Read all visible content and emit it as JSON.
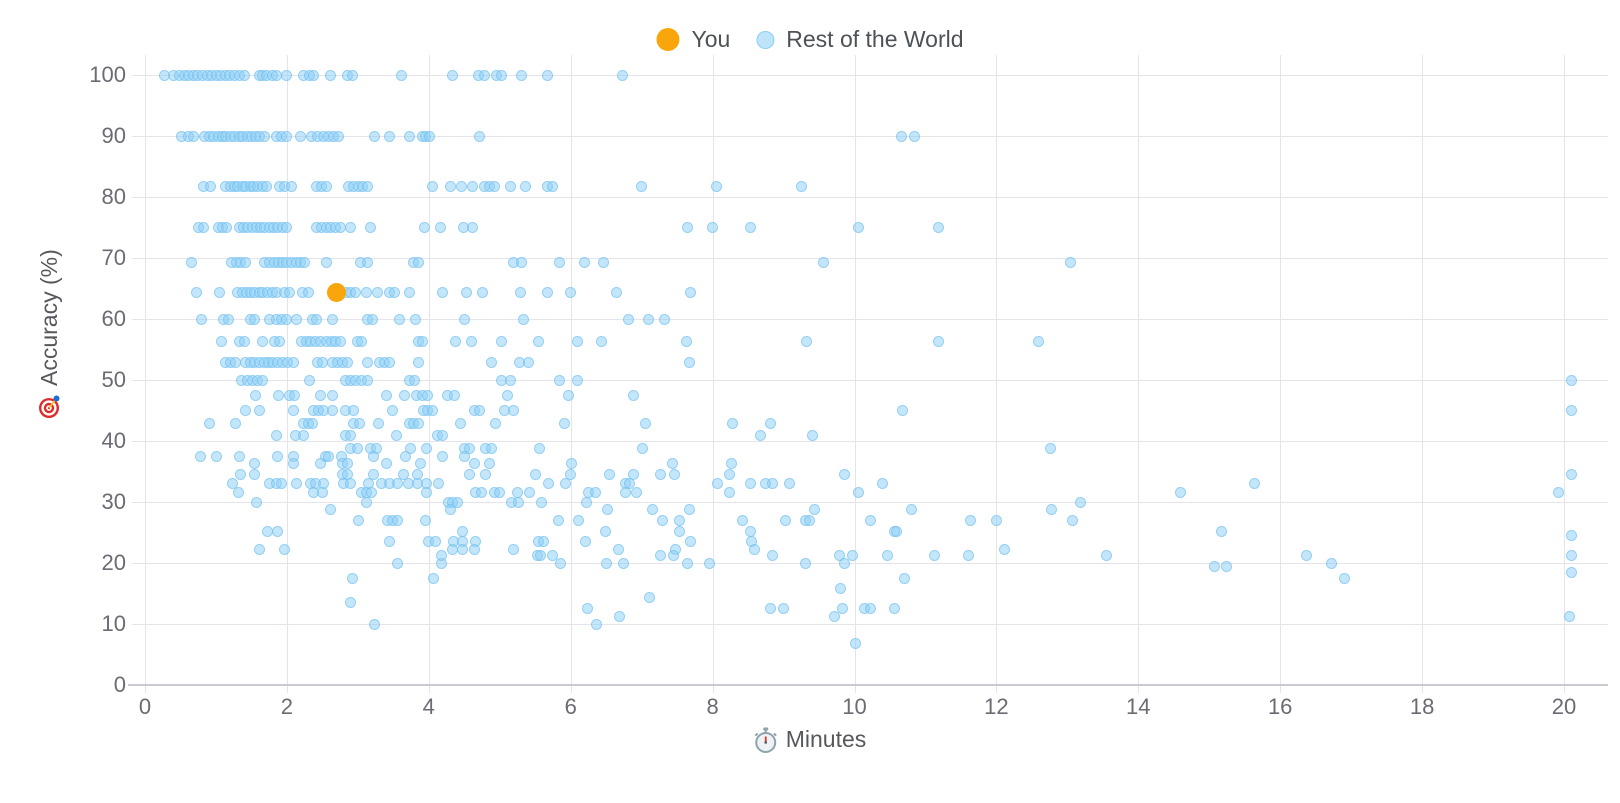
{
  "legend": {
    "you_label": "You",
    "rest_label": "Rest of the World"
  },
  "axes": {
    "y_label": "Accuracy (%)",
    "x_label": "Minutes"
  },
  "colors": {
    "you": "#f9a60c",
    "rest_fill": "#a9ddf8",
    "rest_edge": "#7cc6ef",
    "grid": "#e4e4ea",
    "axis": "#c9c9d2",
    "tick_text": "#6b6b73",
    "label_text": "#55585c",
    "target_red": "#e02b2b",
    "dart_blue": "#1d6fd1"
  },
  "chart_data": {
    "type": "scatter",
    "title": "",
    "xlabel": "Minutes",
    "ylabel": "Accuracy (%)",
    "xlim": [
      0,
      20.4
    ],
    "ylim": [
      0,
      100
    ],
    "x_ticks": [
      0,
      2,
      4,
      6,
      8,
      10,
      12,
      14,
      16,
      18,
      20
    ],
    "y_ticks": [
      0,
      10,
      20,
      30,
      40,
      50,
      60,
      70,
      80,
      90,
      100
    ],
    "grid": true,
    "legend_position": "top-center",
    "series": [
      {
        "name": "You",
        "color": "#f9a60c",
        "points": [
          [
            2.7,
            64.3
          ]
        ]
      },
      {
        "name": "Rest of the World",
        "color": "#a9ddf8",
        "points_by_accuracy": {
          "100": [
            0.28,
            0.4,
            0.48,
            0.55,
            0.62,
            0.68,
            0.74,
            0.81,
            0.88,
            0.94,
            1.01,
            1.07,
            1.13,
            1.19,
            1.26,
            1.33,
            1.4,
            1.61,
            1.66,
            1.71,
            1.79,
            1.85,
            1.99,
            2.23,
            2.32,
            2.38,
            2.62,
            2.85,
            2.92,
            3.62,
            4.33,
            4.7,
            4.78,
            4.96,
            5.03,
            5.3,
            5.68,
            6.73
          ],
          "90": [
            0.52,
            0.61,
            0.68,
            0.84,
            0.91,
            0.96,
            1.03,
            1.09,
            1.14,
            1.21,
            1.26,
            1.33,
            1.38,
            1.44,
            1.5,
            1.56,
            1.62,
            1.68,
            1.86,
            1.93,
            1.99,
            2.19,
            2.35,
            2.43,
            2.51,
            2.58,
            2.65,
            2.73,
            3.23,
            3.44,
            3.73,
            3.91,
            3.95,
            4.01,
            4.71,
            10.66,
            10.84
          ],
          "81.8": [
            0.83,
            0.92,
            1.13,
            1.2,
            1.26,
            1.31,
            1.37,
            1.42,
            1.48,
            1.53,
            1.59,
            1.65,
            1.71,
            1.9,
            1.97,
            2.07,
            2.42,
            2.49,
            2.56,
            2.87,
            2.94,
            3.01,
            3.07,
            3.13,
            4.05,
            4.3,
            4.46,
            4.62,
            4.78,
            4.85,
            4.92,
            5.15,
            5.36,
            5.68,
            5.74,
            7.0,
            8.06,
            9.25
          ],
          "75": [
            0.76,
            0.83,
            1.03,
            1.09,
            1.15,
            1.33,
            1.39,
            1.45,
            1.51,
            1.57,
            1.63,
            1.69,
            1.75,
            1.81,
            1.87,
            1.94,
            2.0,
            2.42,
            2.49,
            2.56,
            2.62,
            2.68,
            2.76,
            2.89,
            3.18,
            3.94,
            4.16,
            4.49,
            4.62,
            7.64,
            8.0,
            8.53,
            10.06,
            11.19
          ],
          "69.2": [
            0.65,
            1.22,
            1.29,
            1.35,
            1.41,
            1.69,
            1.76,
            1.82,
            1.88,
            1.94,
            2.0,
            2.07,
            2.13,
            2.19,
            2.25,
            2.56,
            3.04,
            3.13,
            3.78,
            3.86,
            5.2,
            5.31,
            5.84,
            6.2,
            6.46,
            9.57,
            13.05
          ],
          "64.3": [
            0.72,
            1.05,
            1.31,
            1.37,
            1.43,
            1.48,
            1.54,
            1.61,
            1.66,
            1.73,
            1.79,
            1.85,
            1.97,
            2.03,
            2.22,
            2.3,
            2.84,
            2.9,
            2.97,
            3.12,
            3.27,
            3.44,
            3.51,
            3.73,
            4.2,
            4.53,
            4.75,
            5.29,
            5.67,
            6.0,
            6.65,
            7.69
          ],
          "60": [
            0.79,
            1.1,
            1.18,
            1.48,
            1.55,
            1.76,
            1.85,
            1.93,
            2.0,
            2.14,
            2.36,
            2.42,
            2.64,
            3.14,
            3.21,
            3.59,
            3.81,
            4.5,
            5.34,
            6.81,
            7.1,
            7.32
          ],
          "56.3": [
            1.08,
            1.33,
            1.4,
            1.66,
            1.83,
            1.9,
            2.2,
            2.27,
            2.33,
            2.4,
            2.47,
            2.56,
            2.63,
            2.69,
            2.76,
            2.99,
            3.05,
            3.85,
            3.91,
            4.37,
            4.6,
            5.03,
            5.55,
            6.09,
            6.43,
            7.63,
            9.32,
            11.18,
            12.6
          ],
          "52.9": [
            1.14,
            1.2,
            1.27,
            1.41,
            1.48,
            1.55,
            1.61,
            1.68,
            1.74,
            1.8,
            1.87,
            1.94,
            2.01,
            2.09,
            2.43,
            2.5,
            2.64,
            2.71,
            2.78,
            2.85,
            3.14,
            3.3,
            3.37,
            3.45,
            3.86,
            4.88,
            5.28,
            5.4,
            7.67
          ],
          "50": [
            1.36,
            1.44,
            1.52,
            1.58,
            1.66,
            2.32,
            2.83,
            2.9,
            2.97,
            3.05,
            3.13,
            3.73,
            3.8,
            5.03,
            5.15,
            5.84,
            6.1,
            20.1
          ],
          "47.4": [
            1.56,
            1.88,
            2.04,
            2.11,
            2.47,
            2.64,
            3.4,
            3.66,
            3.82,
            3.91,
            3.98,
            4.27,
            4.36,
            5.11,
            5.97,
            6.89
          ],
          "45": [
            1.42,
            1.61,
            2.09,
            2.38,
            2.44,
            2.51,
            2.64,
            2.82,
            2.94,
            3.49,
            3.92,
            3.98,
            4.05,
            4.65,
            4.72,
            5.07,
            5.2,
            10.67,
            20.1
          ],
          "42.9": [
            0.91,
            1.27,
            2.24,
            2.3,
            2.36,
            2.94,
            3.02,
            3.29,
            3.73,
            3.79,
            3.86,
            4.45,
            4.94,
            5.91,
            7.05,
            8.28,
            8.81
          ],
          "40.9": [
            1.85,
            2.12,
            2.24,
            2.82,
            2.9,
            3.55,
            4.12,
            4.2,
            8.68,
            9.41
          ],
          "38.8": [
            2.9,
            2.99,
            3.18,
            3.26,
            3.74,
            3.97,
            4.5,
            4.58,
            4.8,
            4.88,
            5.56,
            7.01,
            12.76
          ],
          "37.5": [
            0.78,
            1.01,
            1.33,
            1.87,
            2.1,
            2.54,
            2.59,
            2.77,
            3.22,
            3.67,
            4.2,
            4.51
          ],
          "36.3": [
            1.55,
            2.1,
            2.47,
            2.78,
            2.86,
            3.4,
            3.89,
            4.65,
            4.85,
            6.01,
            7.44,
            8.26
          ],
          "34.5": [
            1.35,
            1.54,
            2.78,
            2.85,
            3.22,
            3.64,
            3.84,
            4.58,
            4.8,
            5.51,
            6.0,
            6.54,
            6.89,
            7.27,
            7.47,
            8.24,
            9.86,
            20.1
          ],
          "33.1": [
            1.23,
            1.75,
            1.86,
            1.93,
            2.13,
            2.33,
            2.41,
            2.51,
            2.8,
            2.89,
            3.15,
            3.33,
            3.45,
            3.56,
            3.71,
            3.84,
            3.97,
            4.14,
            5.69,
            5.93,
            6.77,
            6.83,
            8.07,
            8.54,
            8.75,
            8.85,
            9.08,
            10.4,
            15.64
          ],
          "31.6": [
            1.32,
            2.38,
            2.5,
            3.05,
            3.12,
            3.19,
            3.97,
            4.66,
            4.74,
            4.92,
            4.99,
            5.25,
            5.42,
            6.25,
            6.35,
            6.77,
            6.93,
            8.24,
            10.06,
            14.6,
            19.92
          ],
          "30": [
            1.57,
            3.12,
            4.28,
            4.34,
            4.4,
            5.17,
            5.26,
            5.59,
            6.22,
            13.19
          ],
          "28.8": [
            2.61,
            4.3,
            6.52,
            7.15,
            7.67,
            9.44,
            10.81,
            12.78
          ],
          "27": [
            3.01,
            3.42,
            3.49,
            3.56,
            3.95,
            5.83,
            6.11,
            7.3,
            7.54,
            8.42,
            9.03,
            9.31,
            9.37,
            10.23,
            11.63,
            12.0,
            13.07
          ],
          "25.2": [
            1.72,
            1.87,
            4.47,
            6.49,
            7.53,
            8.54,
            10.56,
            10.59,
            15.17
          ],
          "23.6": [
            3.44,
            4.0,
            4.09,
            4.35,
            4.48,
            4.66,
            5.55,
            5.61,
            6.21,
            7.69,
            8.55
          ],
          "24.5": [
            20.1
          ],
          "22.2": [
            1.61,
            1.97,
            4.34,
            4.47,
            4.64,
            5.2,
            6.67,
            7.48,
            8.59,
            12.11
          ],
          "21.3": [
            4.18,
            5.53,
            5.58,
            5.75,
            7.27,
            7.45,
            8.85,
            9.79,
            9.97,
            10.46,
            11.13,
            11.6,
            13.55,
            16.37,
            20.1
          ],
          "20": [
            3.56,
            4.18,
            5.86,
            6.5,
            6.75,
            7.65,
            7.95,
            9.31,
            9.86,
            16.73
          ],
          "19.4": [
            15.07,
            15.24
          ],
          "18.5": [
            20.1
          ],
          "17.5": [
            2.93,
            4.06,
            10.71,
            16.91
          ],
          "15.9": [
            9.8
          ],
          "14.3": [
            7.11
          ],
          "13.5": [
            2.9
          ],
          "12.5": [
            6.24,
            8.82,
            9.0,
            9.83,
            10.14,
            10.23,
            10.56
          ],
          "11.2": [
            6.69,
            9.72,
            20.08
          ],
          "10": [
            3.24,
            6.37
          ],
          "6.8": [
            10.01
          ]
        }
      }
    ]
  }
}
